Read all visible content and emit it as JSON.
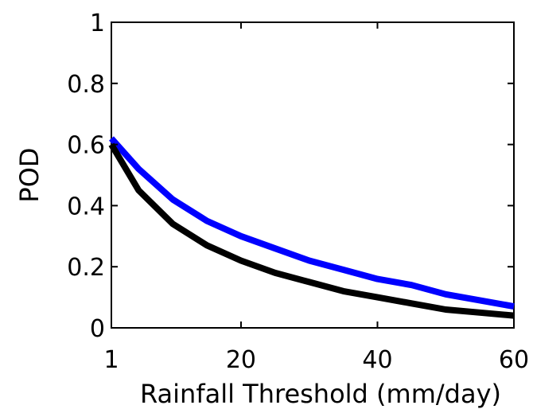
{
  "chart_data": {
    "type": "line",
    "title": "",
    "xlabel": "Rainfall Threshold (mm/day)",
    "ylabel": "POD",
    "xlim": [
      1,
      60
    ],
    "ylim": [
      0,
      1
    ],
    "xticks": [
      1,
      20,
      40,
      60
    ],
    "xtick_labels": [
      "1",
      "20",
      "40",
      "60"
    ],
    "yticks": [
      0,
      0.2,
      0.4,
      0.6,
      0.8,
      1
    ],
    "ytick_labels": [
      "0",
      "0.2",
      "0.4",
      "0.6",
      "0.8",
      "1"
    ],
    "grid": false,
    "legend": "none",
    "series": [
      {
        "color": "#0000ff",
        "x": [
          1,
          5,
          10,
          15,
          20,
          25,
          30,
          35,
          40,
          45,
          50,
          55,
          60
        ],
        "y": [
          0.62,
          0.52,
          0.42,
          0.35,
          0.3,
          0.26,
          0.22,
          0.19,
          0.16,
          0.14,
          0.11,
          0.09,
          0.07
        ]
      },
      {
        "color": "#000000",
        "x": [
          1,
          5,
          10,
          15,
          20,
          25,
          30,
          35,
          40,
          45,
          50,
          55,
          60
        ],
        "y": [
          0.6,
          0.45,
          0.34,
          0.27,
          0.22,
          0.18,
          0.15,
          0.12,
          0.1,
          0.08,
          0.06,
          0.05,
          0.04
        ]
      }
    ]
  }
}
